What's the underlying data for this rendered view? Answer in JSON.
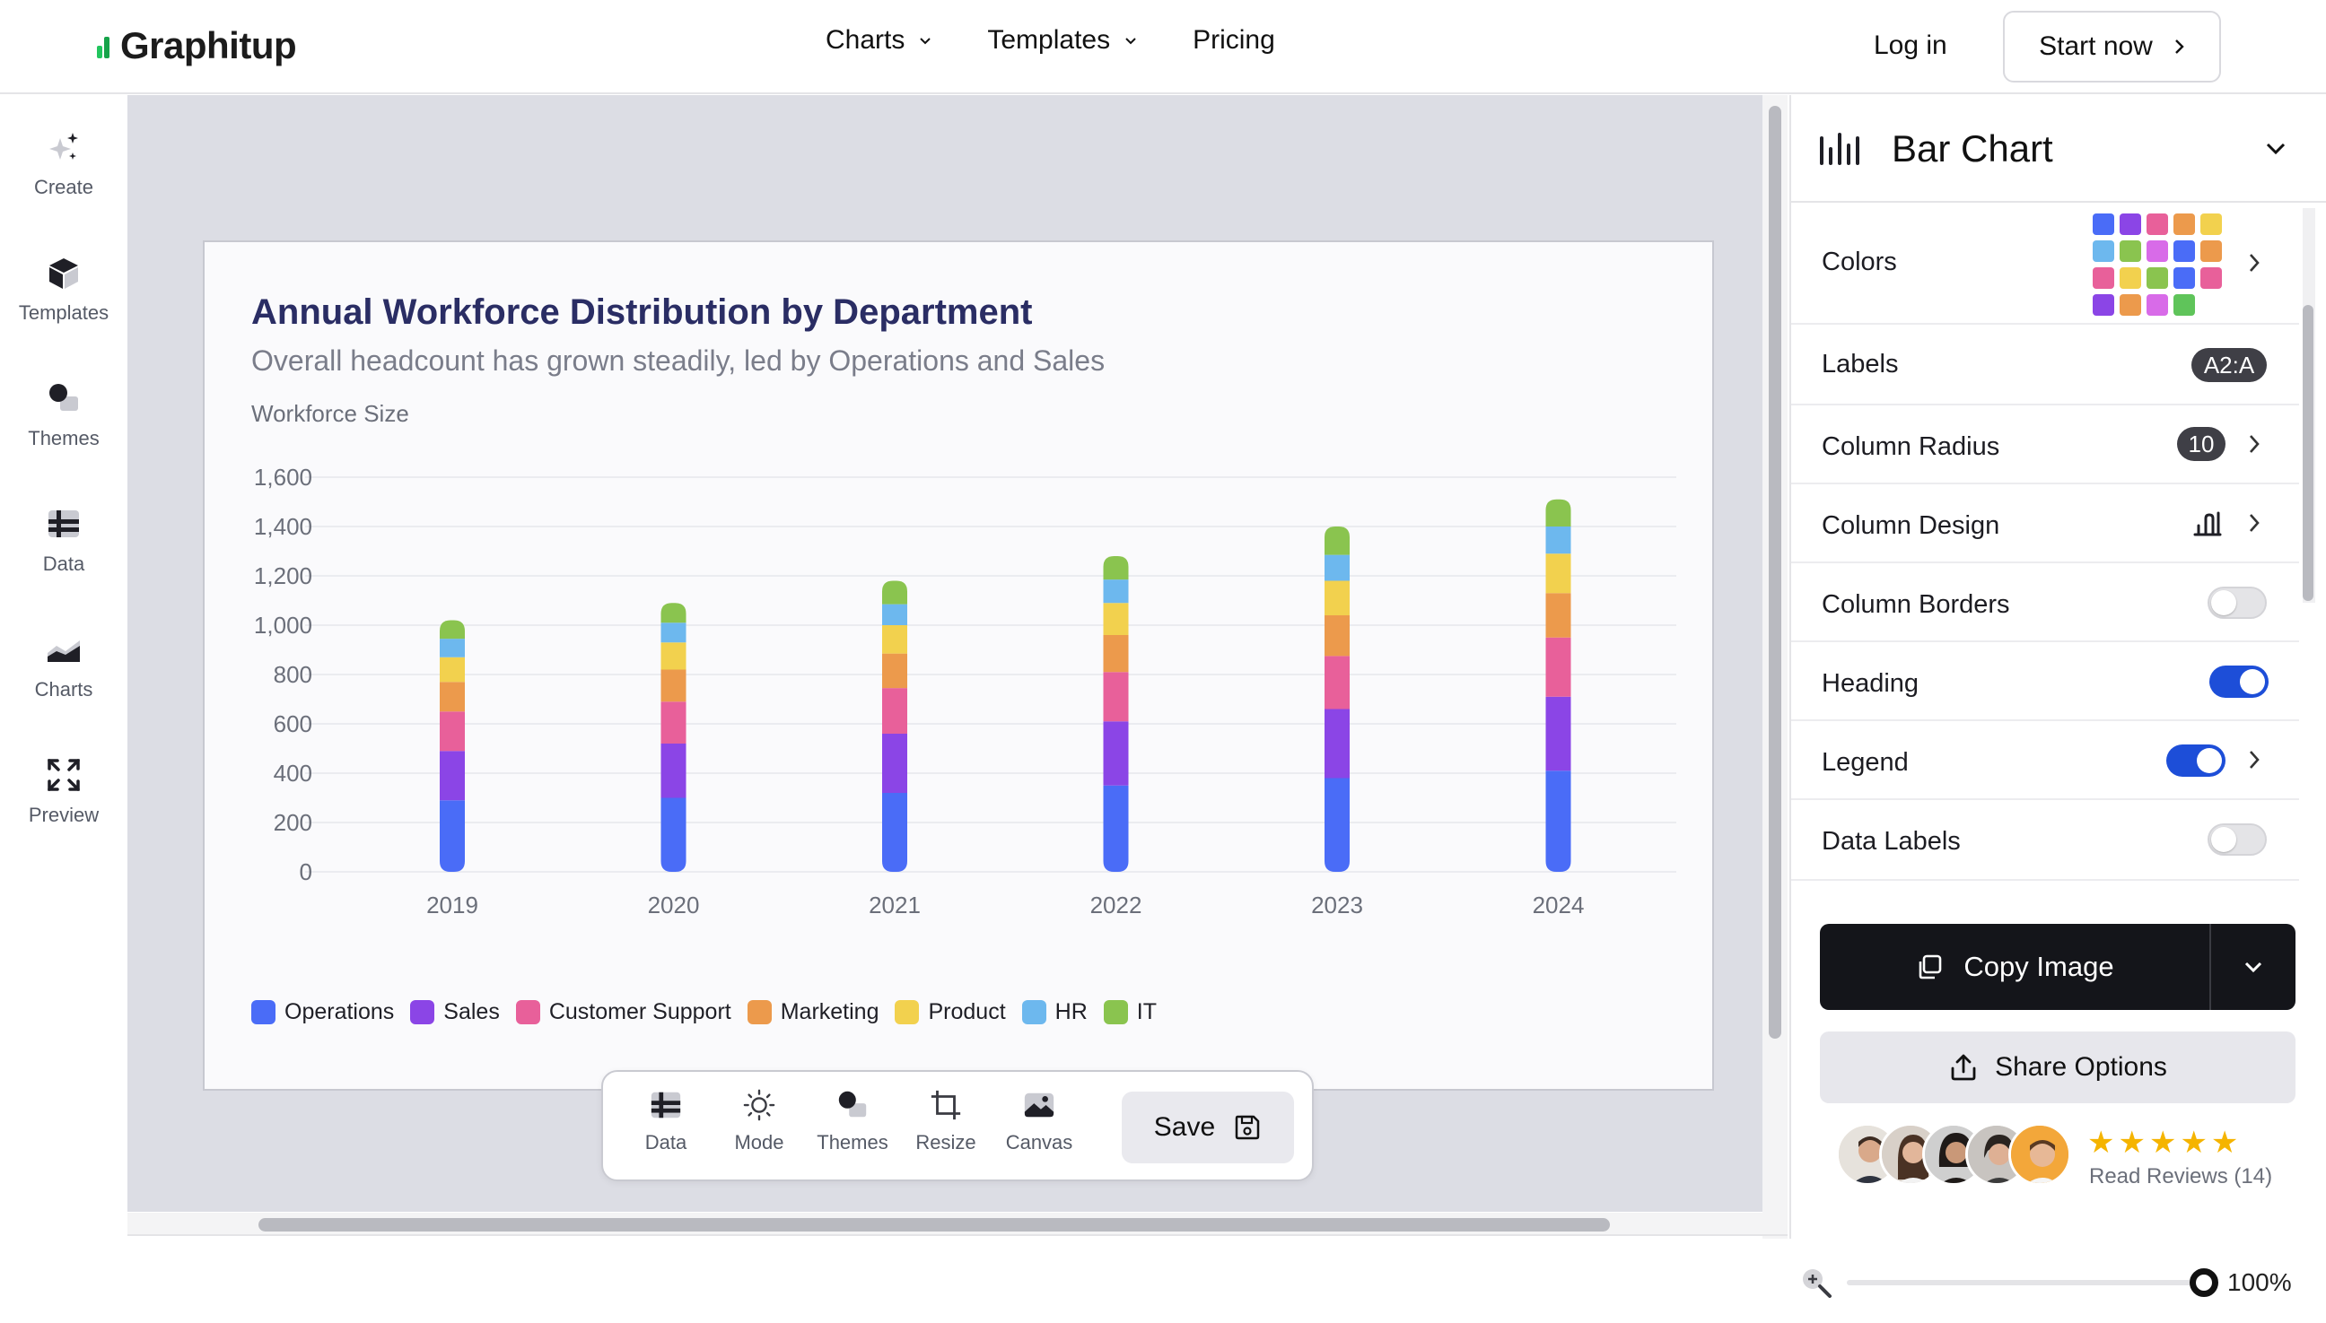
{
  "brand": {
    "name": "Graphitup"
  },
  "nav": {
    "charts": "Charts",
    "templates": "Templates",
    "pricing": "Pricing",
    "login": "Log in",
    "start": "Start now"
  },
  "sidebar": {
    "items": [
      {
        "label": "Create",
        "icon": "sparkle-icon"
      },
      {
        "label": "Templates",
        "icon": "cube-icon"
      },
      {
        "label": "Themes",
        "icon": "shapes-icon"
      },
      {
        "label": "Data",
        "icon": "table-icon"
      },
      {
        "label": "Charts",
        "icon": "area-chart-icon"
      },
      {
        "label": "Preview",
        "icon": "expand-icon"
      }
    ]
  },
  "toolbar": {
    "items": [
      {
        "label": "Data",
        "icon": "table-icon"
      },
      {
        "label": "Mode",
        "icon": "sun-icon"
      },
      {
        "label": "Themes",
        "icon": "shapes-icon"
      },
      {
        "label": "Resize",
        "icon": "crop-icon"
      },
      {
        "label": "Canvas",
        "icon": "image-icon"
      }
    ],
    "save": "Save"
  },
  "panel": {
    "title": "Bar Chart",
    "rows": {
      "colors": "Colors",
      "labels": "Labels",
      "labels_value": "A2:A",
      "column_radius": "Column Radius",
      "column_radius_value": "10",
      "column_design": "Column Design",
      "column_borders": "Column Borders",
      "heading": "Heading",
      "legend": "Legend",
      "data_labels": "Data Labels"
    },
    "toggles": {
      "column_borders": false,
      "heading": true,
      "legend": true,
      "data_labels": false
    },
    "palette": [
      "#4a6cf7",
      "#8b45e6",
      "#e8609a",
      "#ec9a4c",
      "#f2d14e",
      "#6db8ee",
      "#8ac44f",
      "#d86be8",
      "#4a6cf7",
      "#ec9a4c",
      "#e8609a",
      "#f2d14e",
      "#8ac44f",
      "#4a6cf7",
      "#e8609a",
      "#8b45e6",
      "#ec9a4c",
      "#d86be8",
      "#5fc45a"
    ],
    "copy_image": "Copy Image",
    "share_options": "Share Options",
    "stars": "★★★★★",
    "read_reviews": "Read Reviews (14)"
  },
  "zoom": {
    "value": "100%",
    "level": 1.0
  },
  "chart_data": {
    "type": "bar",
    "stacked": true,
    "title": "Annual Workforce Distribution by Department",
    "subtitle": "Overall headcount has grown steadily, led by Operations and Sales",
    "ylabel": "Workforce Size",
    "xlabel": "",
    "ylim": [
      0,
      1600
    ],
    "yticks": [
      "0",
      "200",
      "400",
      "600",
      "800",
      "1,000",
      "1,200",
      "1,400",
      "1,600"
    ],
    "grid": true,
    "legend_position": "bottom",
    "categories": [
      "2019",
      "2020",
      "2021",
      "2022",
      "2023",
      "2024"
    ],
    "series": [
      {
        "name": "Operations",
        "color": "#4a6cf7",
        "values": [
          290,
          300,
          320,
          350,
          380,
          410
        ]
      },
      {
        "name": "Sales",
        "color": "#8b45e6",
        "values": [
          200,
          220,
          240,
          260,
          280,
          300
        ]
      },
      {
        "name": "Customer Support",
        "color": "#e8609a",
        "values": [
          160,
          170,
          185,
          200,
          215,
          240
        ]
      },
      {
        "name": "Marketing",
        "color": "#ec9a4c",
        "values": [
          120,
          130,
          140,
          150,
          165,
          180
        ]
      },
      {
        "name": "Product",
        "color": "#f2d14e",
        "values": [
          100,
          110,
          115,
          130,
          140,
          160
        ]
      },
      {
        "name": "HR",
        "color": "#6db8ee",
        "values": [
          75,
          80,
          85,
          95,
          105,
          110
        ]
      },
      {
        "name": "IT",
        "color": "#8ac44f",
        "values": [
          75,
          80,
          95,
          95,
          115,
          110
        ]
      }
    ]
  }
}
